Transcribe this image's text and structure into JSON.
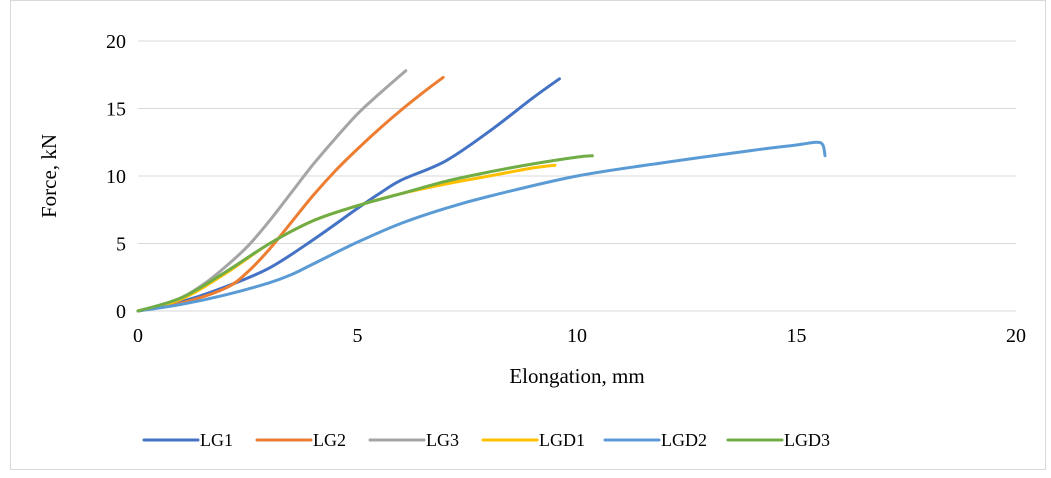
{
  "chart_data": {
    "type": "line",
    "xlabel": "Elongation, mm",
    "ylabel": "Force, kN",
    "xlim": [
      0,
      20
    ],
    "ylim": [
      0,
      20
    ],
    "xticks": [
      "0",
      "5",
      "10",
      "15",
      "20"
    ],
    "yticks": [
      "0",
      "5",
      "10",
      "15",
      "20"
    ],
    "grid": "horizontal",
    "legend": "bottom",
    "series": [
      {
        "name": "LG1",
        "color": "#4472C4",
        "x": [
          0,
          1,
          2,
          3,
          4,
          5,
          5.5,
          6,
          7,
          8,
          9,
          9.6
        ],
        "y": [
          0,
          0.7,
          1.8,
          3.2,
          5.3,
          7.6,
          8.7,
          9.7,
          11.1,
          13.3,
          15.8,
          17.2
        ]
      },
      {
        "name": "LG2",
        "color": "#ED7D31",
        "x": [
          0,
          1,
          2,
          2.5,
          3,
          3.5,
          4,
          4.5,
          5,
          5.5,
          6,
          6.5,
          6.95
        ],
        "y": [
          0,
          0.6,
          1.7,
          2.9,
          4.6,
          6.6,
          8.6,
          10.4,
          12.0,
          13.5,
          14.9,
          16.2,
          17.3
        ]
      },
      {
        "name": "LG3",
        "color": "#A5A5A5",
        "x": [
          0,
          0.5,
          1,
          1.5,
          2,
          2.5,
          3,
          3.5,
          4,
          4.5,
          5,
          5.5,
          6.1
        ],
        "y": [
          0,
          0.4,
          1.0,
          2.0,
          3.3,
          4.8,
          6.7,
          8.8,
          10.9,
          12.8,
          14.6,
          16.1,
          17.8
        ]
      },
      {
        "name": "LGD1",
        "color": "#FFC000",
        "x": [
          0,
          1,
          2,
          3,
          4,
          5,
          6,
          7,
          8,
          9,
          9.5
        ],
        "y": [
          0,
          0.9,
          2.8,
          5.0,
          6.7,
          7.8,
          8.7,
          9.4,
          10.0,
          10.6,
          10.8
        ]
      },
      {
        "name": "LGD2",
        "color": "#5B9BD5",
        "x": [
          0,
          1,
          2,
          3,
          3.5,
          4,
          5,
          6,
          7,
          8,
          10,
          12,
          14,
          15,
          15.45,
          15.6,
          15.65
        ],
        "y": [
          0,
          0.5,
          1.2,
          2.1,
          2.7,
          3.5,
          5.1,
          6.5,
          7.6,
          8.5,
          10.0,
          11.0,
          11.9,
          12.3,
          12.5,
          12.3,
          11.5
        ]
      },
      {
        "name": "LGD3",
        "color": "#70AD47",
        "x": [
          0,
          1,
          2,
          3,
          4,
          5,
          6,
          7,
          8,
          9,
          10,
          10.35
        ],
        "y": [
          0,
          1.0,
          2.9,
          5.0,
          6.7,
          7.8,
          8.7,
          9.6,
          10.3,
          10.9,
          11.4,
          11.5
        ]
      }
    ]
  }
}
